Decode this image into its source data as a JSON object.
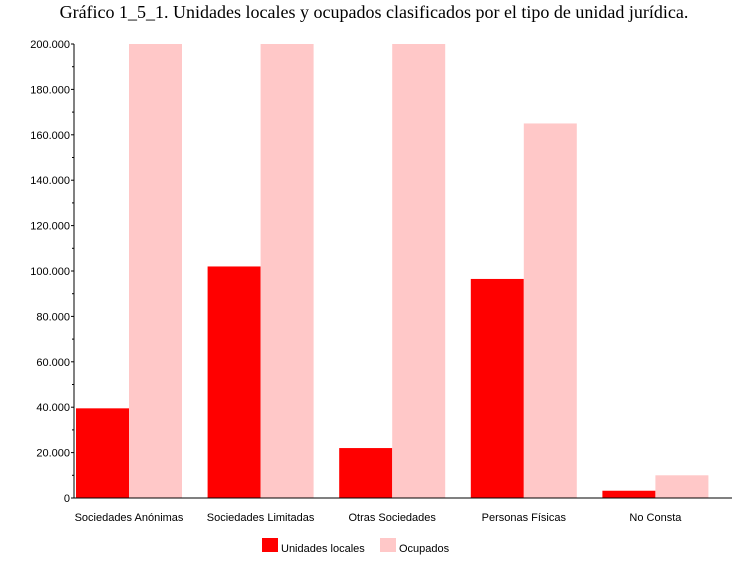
{
  "chart_data": {
    "type": "bar",
    "title": "Gráfico 1_5_1. Unidades locales y ocupados clasificados por el tipo de unidad jurídica.",
    "categories": [
      "Sociedades Anónimas",
      "Sociedades Limitadas",
      "Otras Sociedades",
      "Personas Físicas",
      "No Consta"
    ],
    "series": [
      {
        "name": "Unidades locales",
        "color": "#ff0000",
        "values": [
          39500,
          102000,
          22000,
          96500,
          3200
        ]
      },
      {
        "name": "Ocupados",
        "color": "#ffc8c8",
        "values": [
          200000,
          200000,
          200000,
          165000,
          10000
        ]
      }
    ],
    "ylim": [
      0,
      200000
    ],
    "yticks": [
      0,
      20000,
      40000,
      60000,
      80000,
      100000,
      120000,
      140000,
      160000,
      180000,
      200000
    ],
    "ytick_labels": [
      "0",
      "20.000",
      "40.000",
      "60.000",
      "80.000",
      "100.000",
      "120.000",
      "140.000",
      "160.000",
      "180.000",
      "200.000"
    ],
    "xlabel": "",
    "ylabel": "",
    "grid": true,
    "legend_position": "bottom"
  }
}
